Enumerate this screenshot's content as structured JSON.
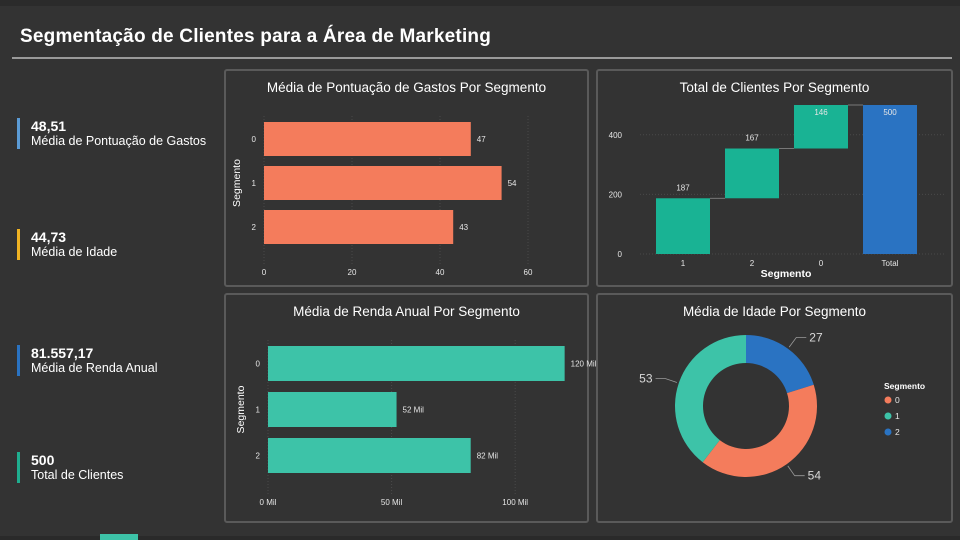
{
  "header": {
    "title": "Segmentação de Clientes para a Área de Marketing"
  },
  "colors": {
    "orange": "#f47c5c",
    "teal": "#3dc3a8",
    "waterfall_teal": "#19b394",
    "blue": "#2a73c2",
    "bg": "#333333"
  },
  "kpis": [
    {
      "value": "48,51",
      "label": "Média de Pontuação de Gastos",
      "color": "#5b9bd5"
    },
    {
      "value": "44,73",
      "label": "Média de Idade",
      "color": "#f0b323"
    },
    {
      "value": "81.557,17",
      "label": "Média de Renda Anual",
      "color": "#2a73c2"
    },
    {
      "value": "500",
      "label": "Total de Clientes",
      "color": "#1fae8f"
    }
  ],
  "chart_data": [
    {
      "type": "bar",
      "orientation": "horizontal",
      "title": "Média de Pontuação de Gastos Por Segmento",
      "ylabel": "Segmento",
      "categories": [
        "0",
        "1",
        "2"
      ],
      "values": [
        47,
        54,
        43
      ],
      "data_labels": [
        "47",
        "54",
        "43"
      ],
      "xlim": [
        0,
        60
      ],
      "xticks": [
        "0",
        "20",
        "40",
        "60"
      ],
      "color": "#f47c5c"
    },
    {
      "type": "bar",
      "subtype": "waterfall",
      "title": "Total de Clientes Por Segmento",
      "xlabel": "Segmento",
      "categories": [
        "1",
        "2",
        "0",
        "Total"
      ],
      "values": [
        187,
        167,
        146,
        500
      ],
      "data_labels": [
        "187",
        "167",
        "146",
        "500"
      ],
      "ylim": [
        0,
        500
      ],
      "yticks": [
        "0",
        "200",
        "400"
      ],
      "colors": {
        "increase": "#19b394",
        "total": "#2a73c2"
      }
    },
    {
      "type": "bar",
      "orientation": "horizontal",
      "title": "Média de Renda Anual Por Segmento",
      "ylabel": "Segmento",
      "categories": [
        "0",
        "1",
        "2"
      ],
      "values": [
        120000,
        52000,
        82000
      ],
      "data_labels": [
        "120 Mil",
        "52 Mil",
        "82 Mil"
      ],
      "xlim": [
        0,
        125000
      ],
      "xticks": [
        {
          "label": "0 Mil",
          "value": 0
        },
        {
          "label": "50 Mil",
          "value": 50000
        },
        {
          "label": "100 Mil",
          "value": 100000
        }
      ],
      "color": "#3dc3a8"
    },
    {
      "type": "pie",
      "subtype": "donut",
      "title": "Média de Idade Por Segmento",
      "categories": [
        "0",
        "1",
        "2"
      ],
      "values": [
        54,
        53,
        27
      ],
      "data_labels": [
        "54",
        "53",
        "27"
      ],
      "legend": {
        "title": "Segmento",
        "position": "right"
      },
      "colors": [
        "#f47c5c",
        "#3dc3a8",
        "#2a73c2"
      ]
    }
  ]
}
